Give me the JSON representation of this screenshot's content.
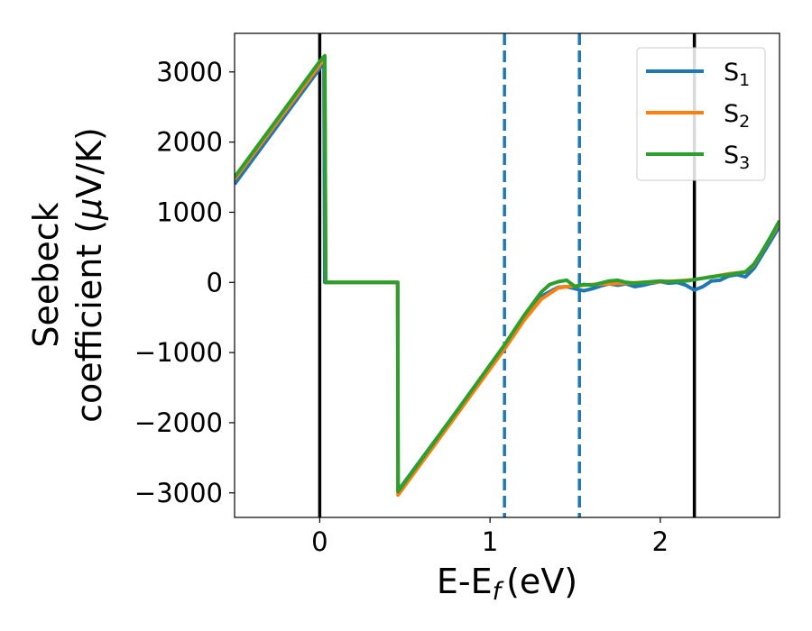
{
  "chart_data": {
    "type": "line",
    "title": "",
    "xlabel": "E-E",
    "xlabel_sub": "f",
    "xlabel_unit": "(eV)",
    "ylabel_line1": "Seebeck",
    "ylabel_line2_text": "coefficient  (",
    "ylabel_line2_mu": "μ",
    "ylabel_line2_unit": "V/K)",
    "xlim": [
      -0.5,
      2.7
    ],
    "ylim": [
      -3350,
      3550
    ],
    "xticks": [
      0,
      1,
      2
    ],
    "xtick_labels": [
      "0",
      "1",
      "2"
    ],
    "yticks": [
      -3000,
      -2000,
      -1000,
      0,
      1000,
      2000,
      3000
    ],
    "ytick_labels": [
      "−3000",
      "−2000",
      "−1000",
      "0",
      "1000",
      "2000",
      "3000"
    ],
    "grid": false,
    "legend_position": "top-right",
    "vertical_lines": [
      {
        "x": 0.0,
        "style": "solid",
        "color": "#000000"
      },
      {
        "x": 2.2,
        "style": "solid",
        "color": "#000000"
      },
      {
        "x": 1.085,
        "style": "dashed",
        "color": "#1f77b4"
      },
      {
        "x": 1.525,
        "style": "dashed",
        "color": "#1f77b4"
      }
    ],
    "series": [
      {
        "name": "S",
        "name_sub": "1",
        "color": "#1f77b4",
        "x": [
          -0.5,
          0.0,
          0.02,
          0.025,
          0.03,
          0.455,
          0.458,
          0.46,
          0.8,
          1.085,
          1.2,
          1.3,
          1.4,
          1.45,
          1.5,
          1.55,
          1.6,
          1.65,
          1.7,
          1.75,
          1.8,
          1.85,
          1.9,
          1.95,
          2.0,
          2.05,
          2.1,
          2.15,
          2.2,
          2.25,
          2.3,
          2.35,
          2.4,
          2.45,
          2.5,
          2.55,
          2.6,
          2.65,
          2.7
        ],
        "y": [
          1400,
          3050,
          3120,
          3140,
          0,
          0,
          0,
          -2970,
          -1850,
          -900,
          -500,
          -200,
          -70,
          -60,
          -90,
          -120,
          -90,
          -50,
          -20,
          -40,
          -20,
          -60,
          -40,
          -10,
          10,
          -10,
          0,
          -40,
          -110,
          -60,
          20,
          30,
          90,
          110,
          80,
          200,
          400,
          600,
          800
        ]
      },
      {
        "name": "S",
        "name_sub": "2",
        "color": "#ff7f0e",
        "x": [
          -0.5,
          0.0,
          0.025,
          0.03,
          0.035,
          0.455,
          0.458,
          0.46,
          0.8,
          1.085,
          1.2,
          1.3,
          1.4,
          1.45,
          1.5,
          1.55,
          1.6,
          1.7,
          1.8,
          1.9,
          2.0,
          2.1,
          2.2,
          2.3,
          2.4,
          2.5,
          2.55,
          2.6,
          2.65,
          2.7
        ],
        "y": [
          1470,
          3100,
          3180,
          3200,
          0,
          0,
          0,
          -3030,
          -1900,
          -950,
          -540,
          -240,
          -80,
          -60,
          -50,
          -40,
          -30,
          -20,
          -10,
          0,
          10,
          20,
          40,
          80,
          120,
          150,
          250,
          450,
          650,
          860
        ]
      },
      {
        "name": "S",
        "name_sub": "3",
        "color": "#2ca02c",
        "x": [
          -0.5,
          0.0,
          0.025,
          0.03,
          0.035,
          0.455,
          0.458,
          0.46,
          0.8,
          1.085,
          1.2,
          1.3,
          1.35,
          1.4,
          1.45,
          1.5,
          1.55,
          1.6,
          1.65,
          1.7,
          1.75,
          1.8,
          1.85,
          1.9,
          1.95,
          2.0,
          2.05,
          2.1,
          2.15,
          2.2,
          2.3,
          2.4,
          2.5,
          2.55,
          2.6,
          2.65,
          2.7
        ],
        "y": [
          1500,
          3150,
          3220,
          3230,
          0,
          0,
          0,
          -2980,
          -1850,
          -890,
          -470,
          -140,
          -30,
          10,
          30,
          -60,
          -30,
          -40,
          -10,
          20,
          30,
          0,
          -10,
          0,
          10,
          20,
          10,
          20,
          20,
          40,
          80,
          110,
          150,
          260,
          450,
          660,
          880
        ]
      }
    ]
  }
}
